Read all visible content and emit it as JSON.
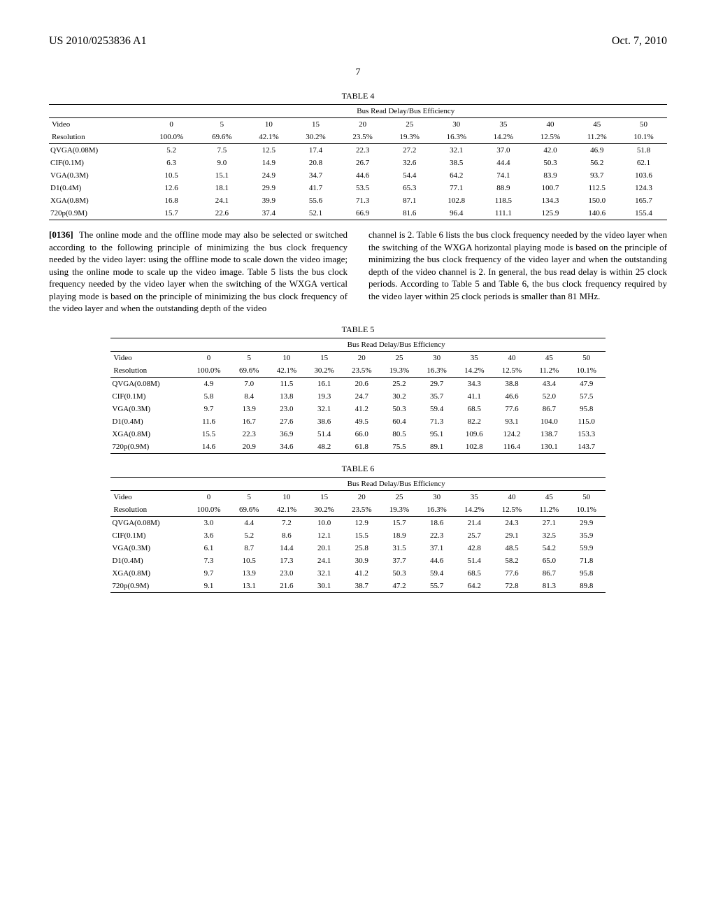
{
  "header": {
    "doc_number": "US 2010/0253836 A1",
    "date": "Oct. 7, 2010"
  },
  "page_number": "7",
  "tables": {
    "efficiency_header": "Bus Read Delay/Bus Efficiency",
    "row_header_line1": "Video",
    "row_header_line2": "Resolution",
    "delays": [
      "0",
      "5",
      "10",
      "15",
      "20",
      "25",
      "30",
      "35",
      "40",
      "45",
      "50"
    ],
    "efficiencies": [
      "100.0%",
      "69.6%",
      "42.1%",
      "30.2%",
      "23.5%",
      "19.3%",
      "16.3%",
      "14.2%",
      "12.5%",
      "11.2%",
      "10.1%"
    ],
    "row_labels": [
      "QVGA(0.08M)",
      "CIF(0.1M)",
      "VGA(0.3M)",
      "D1(0.4M)",
      "XGA(0.8M)",
      "720p(0.9M)"
    ],
    "t4": {
      "caption": "TABLE 4",
      "rows": [
        [
          "5.2",
          "7.5",
          "12.5",
          "17.4",
          "22.3",
          "27.2",
          "32.1",
          "37.0",
          "42.0",
          "46.9",
          "51.8"
        ],
        [
          "6.3",
          "9.0",
          "14.9",
          "20.8",
          "26.7",
          "32.6",
          "38.5",
          "44.4",
          "50.3",
          "56.2",
          "62.1"
        ],
        [
          "10.5",
          "15.1",
          "24.9",
          "34.7",
          "44.6",
          "54.4",
          "64.2",
          "74.1",
          "83.9",
          "93.7",
          "103.6"
        ],
        [
          "12.6",
          "18.1",
          "29.9",
          "41.7",
          "53.5",
          "65.3",
          "77.1",
          "88.9",
          "100.7",
          "112.5",
          "124.3"
        ],
        [
          "16.8",
          "24.1",
          "39.9",
          "55.6",
          "71.3",
          "87.1",
          "102.8",
          "118.5",
          "134.3",
          "150.0",
          "165.7"
        ],
        [
          "15.7",
          "22.6",
          "37.4",
          "52.1",
          "66.9",
          "81.6",
          "96.4",
          "111.1",
          "125.9",
          "140.6",
          "155.4"
        ]
      ]
    },
    "t5": {
      "caption": "TABLE 5",
      "rows": [
        [
          "4.9",
          "7.0",
          "11.5",
          "16.1",
          "20.6",
          "25.2",
          "29.7",
          "34.3",
          "38.8",
          "43.4",
          "47.9"
        ],
        [
          "5.8",
          "8.4",
          "13.8",
          "19.3",
          "24.7",
          "30.2",
          "35.7",
          "41.1",
          "46.6",
          "52.0",
          "57.5"
        ],
        [
          "9.7",
          "13.9",
          "23.0",
          "32.1",
          "41.2",
          "50.3",
          "59.4",
          "68.5",
          "77.6",
          "86.7",
          "95.8"
        ],
        [
          "11.6",
          "16.7",
          "27.6",
          "38.6",
          "49.5",
          "60.4",
          "71.3",
          "82.2",
          "93.1",
          "104.0",
          "115.0"
        ],
        [
          "15.5",
          "22.3",
          "36.9",
          "51.4",
          "66.0",
          "80.5",
          "95.1",
          "109.6",
          "124.2",
          "138.7",
          "153.3"
        ],
        [
          "14.6",
          "20.9",
          "34.6",
          "48.2",
          "61.8",
          "75.5",
          "89.1",
          "102.8",
          "116.4",
          "130.1",
          "143.7"
        ]
      ]
    },
    "t6": {
      "caption": "TABLE 6",
      "rows": [
        [
          "3.0",
          "4.4",
          "7.2",
          "10.0",
          "12.9",
          "15.7",
          "18.6",
          "21.4",
          "24.3",
          "27.1",
          "29.9"
        ],
        [
          "3.6",
          "5.2",
          "8.6",
          "12.1",
          "15.5",
          "18.9",
          "22.3",
          "25.7",
          "29.1",
          "32.5",
          "35.9"
        ],
        [
          "6.1",
          "8.7",
          "14.4",
          "20.1",
          "25.8",
          "31.5",
          "37.1",
          "42.8",
          "48.5",
          "54.2",
          "59.9"
        ],
        [
          "7.3",
          "10.5",
          "17.3",
          "24.1",
          "30.9",
          "37.7",
          "44.6",
          "51.4",
          "58.2",
          "65.0",
          "71.8"
        ],
        [
          "9.7",
          "13.9",
          "23.0",
          "32.1",
          "41.2",
          "50.3",
          "59.4",
          "68.5",
          "77.6",
          "86.7",
          "95.8"
        ],
        [
          "9.1",
          "13.1",
          "21.6",
          "30.1",
          "38.7",
          "47.2",
          "55.7",
          "64.2",
          "72.8",
          "81.3",
          "89.8"
        ]
      ]
    }
  },
  "body": {
    "para_num": "[0136]",
    "left_text": "  The online mode and the offline mode may also be selected or switched according to the following principle of minimizing the bus clock frequency needed by the video layer: using the offline mode to scale down the video image; using the online mode to scale up the video image. Table 5 lists the bus clock frequency needed by the video layer when the switching of the WXGA vertical playing mode is based on the principle of minimizing the bus clock frequency of the video layer and when the outstanding depth of the video",
    "right_text": "channel is 2. Table 6 lists the bus clock frequency needed by the video layer when the switching of the WXGA horizontal playing mode is based on the principle of minimizing the bus clock frequency of the video layer and when the outstanding depth of the video channel is 2. In general, the bus read delay is within 25 clock periods. According to Table 5 and Table 6, the bus clock frequency required by the video layer within 25 clock periods is smaller than 81 MHz."
  }
}
